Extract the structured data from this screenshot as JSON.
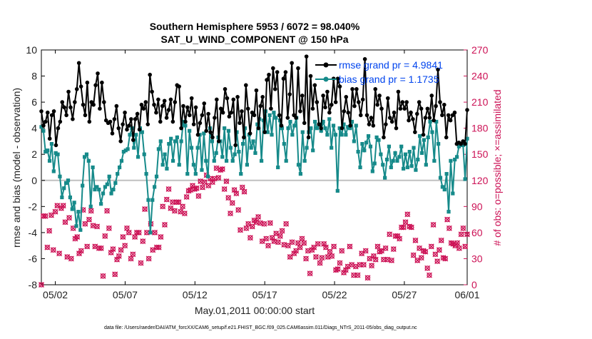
{
  "chart_data": {
    "type": "line",
    "title_line1": "Southern Hemisphere 5953 / 6072 = 98.040%",
    "title_line2": "SAT_U_WIND_COMPONENT @ 150 hPa",
    "xlabel": "May.01,2011 00:00:00 start",
    "ylabel_left": "rmse and bias (model - observation)",
    "ylabel_right": "# of obs: o=possible; ×=assimilated",
    "footer": "data file: /Users/raeder/DAI/ATM_forcXX/CAM6_setup/f.e21.FHIST_BGC.f09_025.CAM6assim.011/Diags_NTrS_2011-05/obs_diag_output.nc",
    "xlim": [
      0.5,
      31.0
    ],
    "ylim_left": [
      -8,
      10
    ],
    "ylim_right": [
      0,
      270
    ],
    "x_ticks": [
      {
        "value": 1.5,
        "label": "05/02"
      },
      {
        "value": 6.5,
        "label": "05/07"
      },
      {
        "value": 11.5,
        "label": "05/12"
      },
      {
        "value": 16.5,
        "label": "05/17"
      },
      {
        "value": 21.5,
        "label": "05/22"
      },
      {
        "value": 26.5,
        "label": "05/27"
      },
      {
        "value": 31.0,
        "label": "06/01"
      }
    ],
    "y_ticks_left": [
      "-8",
      "-6",
      "-4",
      "-2",
      "0",
      "2",
      "4",
      "6",
      "8",
      "10"
    ],
    "y_ticks_right": [
      "0",
      "30",
      "60",
      "90",
      "120",
      "150",
      "180",
      "210",
      "240",
      "270"
    ],
    "legend": [
      {
        "name": "rmse grand pr = 4.9841",
        "color": "#000000"
      },
      {
        "name": "bias grand pr = 1.1735",
        "color": "#168a8a"
      }
    ],
    "legend_placement": "top-right",
    "colors": {
      "rmse": "#000000",
      "bias": "#168a8a",
      "obs": "#cc1155",
      "zero_line": "#c0c0c0",
      "legend_text": "#0044ee"
    },
    "series": [
      {
        "name": "rmse",
        "values": [
          5.3,
          4.2,
          4.5,
          5.2,
          3.2,
          5.0,
          5.3,
          2.7,
          4.0,
          4.5,
          6.0,
          5.6,
          5.0,
          6.8,
          5.6,
          4.7,
          6.0,
          7.0,
          9.0,
          7.2,
          5.8,
          5.0,
          7.5,
          4.5,
          6.0,
          5.8,
          7.3,
          8.2,
          5.5,
          7.5,
          6.0,
          4.6,
          4.4,
          4.5,
          3.6,
          4.7,
          5.7,
          4.0,
          3.0,
          4.3,
          5.2,
          3.9,
          4.2,
          4.7,
          3.1,
          4.7,
          5.1,
          3.9,
          5.8,
          5.5,
          6.0,
          4.3,
          8.1,
          6.8,
          5.8,
          5.2,
          6.2,
          4.5,
          5.7,
          6.1,
          4.8,
          5.4,
          6.2,
          4.5,
          6.0,
          7.3,
          7.2,
          4.0,
          5.7,
          4.5,
          5.6,
          5.0,
          6.3,
          4.3,
          5.6,
          3.5,
          4.4,
          5.0,
          5.9,
          3.8,
          5.1,
          3.7,
          3.3,
          4.8,
          6.2,
          3.0,
          5.5,
          5.2,
          7.0,
          6.3,
          4.9,
          5.2,
          6.2,
          2.7,
          6.4,
          4.4,
          5.3,
          3.3,
          7.3,
          5.5,
          3.6,
          5.2,
          5.0,
          6.9,
          4.0,
          5.7,
          6.4,
          3.7,
          7.7,
          8.1,
          5.5,
          8.6,
          7.0,
          8.3,
          5.0,
          4.2,
          7.8,
          8.3,
          4.8,
          6.6,
          9.0,
          5.0,
          4.8,
          8.6,
          5.3,
          6.5,
          4.4,
          9.5,
          3.3,
          8.0,
          5.5,
          7.3,
          6.0,
          4.3,
          4.0,
          6.5,
          5.6,
          6.8,
          5.2,
          5.8,
          7.8,
          6.0,
          7.8,
          7.2,
          4.0,
          5.3,
          6.4,
          5.2,
          4.2,
          7.0,
          5.7,
          7.0,
          6.0,
          5.0,
          6.2,
          9.3,
          5.0,
          4.3,
          4.8,
          4.2,
          7.0,
          5.8,
          6.5,
          5.5,
          3.3,
          4.3,
          6.3,
          4.8,
          4.5,
          5.2,
          4.0,
          6.8,
          5.5,
          6.0,
          5.5,
          6.0,
          4.6,
          5.2,
          4.7,
          3.7,
          5.1,
          6.0,
          5.5,
          3.5,
          4.8,
          5.5,
          4.8,
          6.5,
          4.6,
          5.7,
          8.5,
          6.0,
          5.0,
          5.8,
          3.3,
          5.0,
          4.6,
          5.0,
          5.2,
          2.8,
          2.9,
          2.8,
          3.0,
          2.8,
          5.4
        ],
        "marker": "filled-circle"
      },
      {
        "name": "bias",
        "values": [
          4.1,
          3.8,
          2.2,
          2.3,
          1.5,
          2.8,
          0.7,
          2.1,
          2.0,
          0.3,
          -1.3,
          -0.6,
          -0.2,
          0.0,
          -1.3,
          -2.2,
          -1.7,
          -3.5,
          -2.4,
          -3.8,
          -0.4,
          1.8,
          2.0,
          1.5,
          -2.0,
          1.0,
          -0.7,
          -0.5,
          -0.7,
          -1.8,
          -1.0,
          -0.5,
          -0.3,
          0.3,
          -1.0,
          -0.7,
          -0.2,
          0.5,
          1.0,
          1.5,
          2.2,
          2.3,
          2.4,
          3.5,
          4.0,
          2.5,
          3.5,
          1.8,
          4.0,
          3.7,
          2.0,
          0.5,
          -1.5,
          -4.0,
          -1.5,
          -0.5,
          0.3,
          2.4,
          3.0,
          1.2,
          2.0,
          0.9,
          2.8,
          3.2,
          1.5,
          3.0,
          3.3,
          1.2,
          3.0,
          4.5,
          4.2,
          0.5,
          3.8,
          2.5,
          1.2,
          0.5,
          2.5,
          3.5,
          0.8,
          3.6,
          1.5,
          0.3,
          4.0,
          3.0,
          1.5,
          2.1,
          3.3,
          3.0,
          1.8,
          4.0,
          1.5,
          3.8,
          2.5,
          1.5,
          2.0,
          3.7,
          2.2,
          0.5,
          2.8,
          4.0,
          1.2,
          3.5,
          2.5,
          3.0,
          2.1,
          4.3,
          4.7,
          1.5,
          4.6,
          5.3,
          3.7,
          5.0,
          3.5,
          5.2,
          4.8,
          1.0,
          4.6,
          4.0,
          2.8,
          1.5,
          4.0,
          4.5,
          3.5,
          4.2,
          4.8,
          1.2,
          0.5,
          3.7,
          1.5,
          2.5,
          3.7,
          4.0,
          2.3,
          4.5,
          4.0,
          4.3,
          3.8,
          4.5,
          4.0,
          3.5,
          4.7,
          2.5,
          4.2,
          3.5,
          -0.8,
          4.0,
          3.5,
          4.3,
          3.5,
          4.1,
          4.0,
          4.5,
          3.0,
          4.2,
          2.2,
          1.0,
          2.8,
          2.3,
          2.9,
          3.4,
          2.6,
          0.7,
          1.3,
          3.3,
          3.1,
          2.0,
          1.2,
          0.2,
          1.6,
          2.6,
          1.0,
          1.5,
          2.1,
          1.5,
          1.8,
          2.6,
          0.9,
          2.0,
          1.0,
          2.2,
          1.1,
          2.5,
          0.8,
          1.6,
          3.4,
          2.1,
          3.1,
          1.2,
          3.3,
          4.5,
          3.7,
          1.5,
          4.5,
          2.8,
          0.2,
          -0.5,
          -0.7,
          0.5,
          -2.4,
          1.5,
          -1.0,
          1.6,
          1.8,
          2.6,
          2.7,
          2.7,
          0.1,
          3.2
        ],
        "marker": "filled-square"
      },
      {
        "name": "obs_count",
        "axis": "right",
        "values": [
          0,
          79,
          79,
          43,
          62,
          80,
          40,
          84,
          91,
          36,
          88,
          91,
          72,
          32,
          77,
          30,
          65,
          53,
          55,
          36,
          39,
          86,
          70,
          44,
          75,
          85,
          68,
          44,
          67,
          42,
          42,
          10,
          56,
          85,
          65,
          37,
          41,
          12,
          29,
          33,
          40,
          55,
          45,
          65,
          60,
          30,
          35,
          55,
          60,
          60,
          25,
          50,
          87,
          60,
          30,
          70,
          40,
          60,
          43,
          43,
          55,
          90,
          69,
          98,
          110,
          88,
          95,
          85,
          95,
          95,
          84,
          90,
          82,
          101,
          108,
          109,
          114,
          110,
          111,
          102,
          119,
          112,
          118,
          126,
          114,
          122,
          118,
          122,
          134,
          123,
          132,
          133,
          110,
          119,
          100,
          82,
          94,
          109,
          105,
          86,
          63,
          112,
          107,
          65,
          70,
          54,
          67,
          74,
          72,
          78,
          71,
          50,
          70,
          53,
          45,
          71,
          54,
          50,
          59,
          49,
          56,
          62,
          46,
          70,
          45,
          32,
          49,
          36,
          39,
          48,
          43,
          53,
          48,
          30,
          39,
          13,
          40,
          43,
          32,
          47,
          25,
          31,
          47,
          43,
          32,
          38,
          33,
          44,
          17,
          18,
          25,
          39,
          14,
          17,
          21,
          44,
          23,
          11,
          21,
          11,
          23,
          36,
          23,
          39,
          8,
          30,
          22,
          33,
          29,
          44,
          38,
          39,
          29,
          42,
          29,
          58,
          28,
          41,
          56,
          56,
          53,
          66,
          66,
          72,
          81,
          67,
          66,
          34,
          51,
          28,
          42,
          31,
          39,
          38,
          19,
          11,
          44,
          69,
          35,
          27,
          40,
          51,
          31,
          30,
          75,
          65,
          48,
          47,
          45,
          48,
          42,
          58,
          65,
          44,
          58
        ],
        "marker": "asterisk"
      }
    ]
  }
}
